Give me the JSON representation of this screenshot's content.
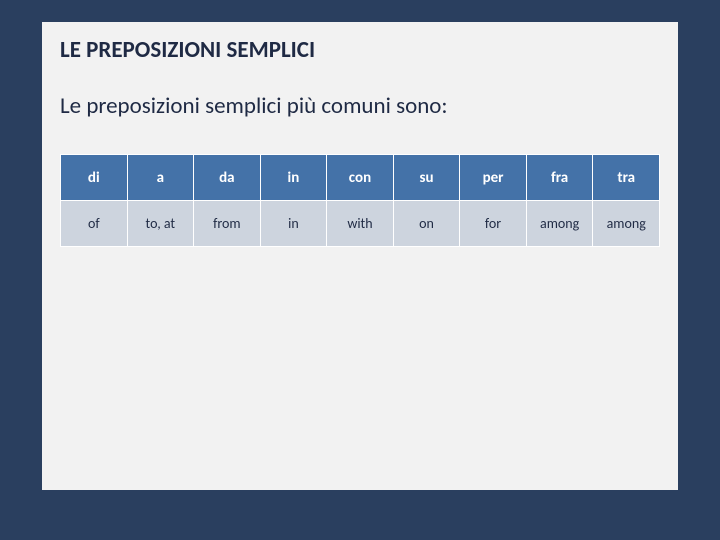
{
  "title": "LE PREPOSIZIONI SEMPLICI",
  "subtitle": "Le preposizioni semplici più comuni sono:",
  "table": {
    "columns": [
      "di",
      "a",
      "da",
      "in",
      "con",
      "su",
      "per",
      "fra",
      "tra"
    ],
    "rows": [
      [
        "of",
        "to, at",
        "from",
        "in",
        "with",
        "on",
        "for",
        "among",
        "among"
      ]
    ],
    "header_bg": "#4472a8",
    "header_fg": "#ffffff",
    "body_bg": "#cdd4de",
    "body_fg": "#1f2a44",
    "border_color": "#ffffff",
    "header_fontsize": 15,
    "body_fontsize": 14
  },
  "slide_bg": "#2a3f5f",
  "card_bg": "#f2f2f2",
  "title_color": "#1f2a44",
  "title_fontsize": 23,
  "subtitle_fontsize": 23
}
